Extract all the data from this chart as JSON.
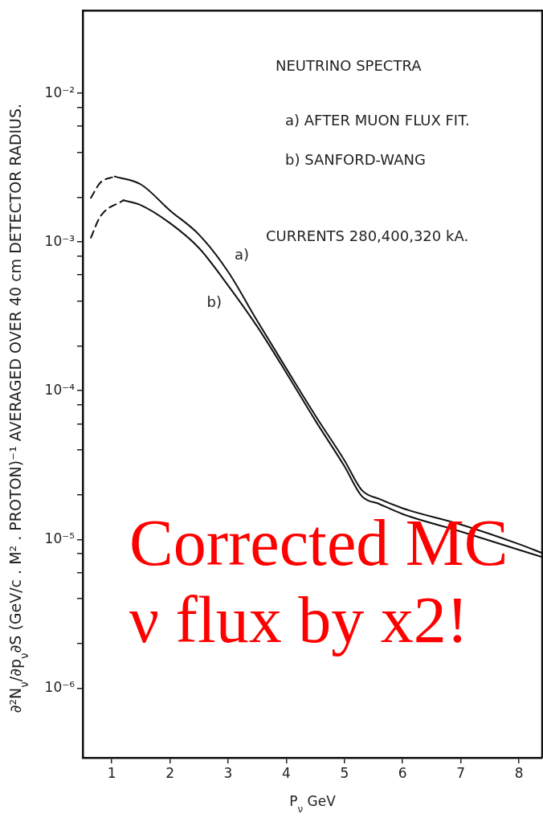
{
  "chart_data": {
    "type": "line",
    "xlabel": "P$_{ν}$ GeV",
    "ylabel": "∂²N$_{ν}$/∂p$_{ν}$∂S (GeV/c . M² . PROTON)⁻¹ AVERAGED OVER 40 cm DETECTOR RADIUS.",
    "annotations": [
      "NEUTRINO SPECTRA",
      "a) AFTER MUON FLUX FIT.",
      "b) SANFORD-WANG",
      "CURRENTS 280,400,320 kA.",
      "Corrected MC ν flux by x2!"
    ],
    "log": "y",
    "grid": false,
    "legend": false,
    "marker": "none",
    "xlim": [
      0.5,
      8.4
    ],
    "xticks": [
      1,
      2,
      3,
      4,
      5,
      6,
      7,
      8
    ],
    "ylim": [
      3.4e-07,
      0.036
    ],
    "yticks": [
      {
        "value": 1e-06,
        "label": "10⁻⁶"
      },
      {
        "value": 2e-06,
        "label": null
      },
      {
        "value": 4e-06,
        "label": null
      },
      {
        "value": 6e-06,
        "label": null
      },
      {
        "value": 8e-06,
        "label": null
      },
      {
        "value": 1e-05,
        "label": "10⁻⁵"
      },
      {
        "value": 2e-05,
        "label": null
      },
      {
        "value": 4e-05,
        "label": null
      },
      {
        "value": 6e-05,
        "label": null
      },
      {
        "value": 8e-05,
        "label": null
      },
      {
        "value": 0.0001,
        "label": "10⁻⁴"
      },
      {
        "value": 0.0002,
        "label": null
      },
      {
        "value": 0.0004,
        "label": null
      },
      {
        "value": 0.0006,
        "label": null
      },
      {
        "value": 0.0008,
        "label": null
      },
      {
        "value": 0.001,
        "label": "10⁻³"
      },
      {
        "value": 0.002,
        "label": null
      },
      {
        "value": 0.004,
        "label": null
      },
      {
        "value": 0.006,
        "label": null
      },
      {
        "value": 0.008,
        "label": null
      },
      {
        "value": 0.01,
        "label": "10⁻²"
      }
    ],
    "series": [
      {
        "color": "#111111",
        "line_style": "dashed",
        "x": [
          0.64,
          0.8,
          1.05
        ],
        "values": [
          0.00198,
          0.0025,
          0.00276
        ]
      },
      {
        "name": "a)",
        "color": "#111111",
        "line_style": "solid",
        "x": [
          1.05,
          1.5,
          2,
          2.5,
          3,
          3.5,
          4,
          4.5,
          5,
          5.3,
          5.6,
          6,
          7,
          8,
          8.4
        ],
        "values": [
          0.00276,
          0.00244,
          0.00163,
          0.00112,
          0.00063,
          0.000295,
          0.000141,
          6.8e-05,
          3.4e-05,
          2.14e-05,
          1.87e-05,
          1.62e-05,
          1.26e-05,
          9.3e-06,
          8.1e-06
        ]
      },
      {
        "color": "#111111",
        "line_style": "dashed",
        "x": [
          0.64,
          0.8,
          1.2
        ],
        "values": [
          0.00107,
          0.00148,
          0.00191
        ]
      },
      {
        "name": "b)",
        "color": "#111111",
        "line_style": "solid",
        "x": [
          1.2,
          1.5,
          2,
          2.5,
          3,
          3.5,
          4,
          4.5,
          5,
          5.3,
          5.6,
          6,
          7,
          8,
          8.4
        ],
        "values": [
          0.00191,
          0.00177,
          0.00134,
          0.00091,
          0.00051,
          0.00027,
          0.000132,
          6.3e-05,
          3.1e-05,
          1.95e-05,
          1.73e-05,
          1.48e-05,
          1.13e-05,
          8.5e-06,
          7.6e-06
        ]
      }
    ]
  }
}
